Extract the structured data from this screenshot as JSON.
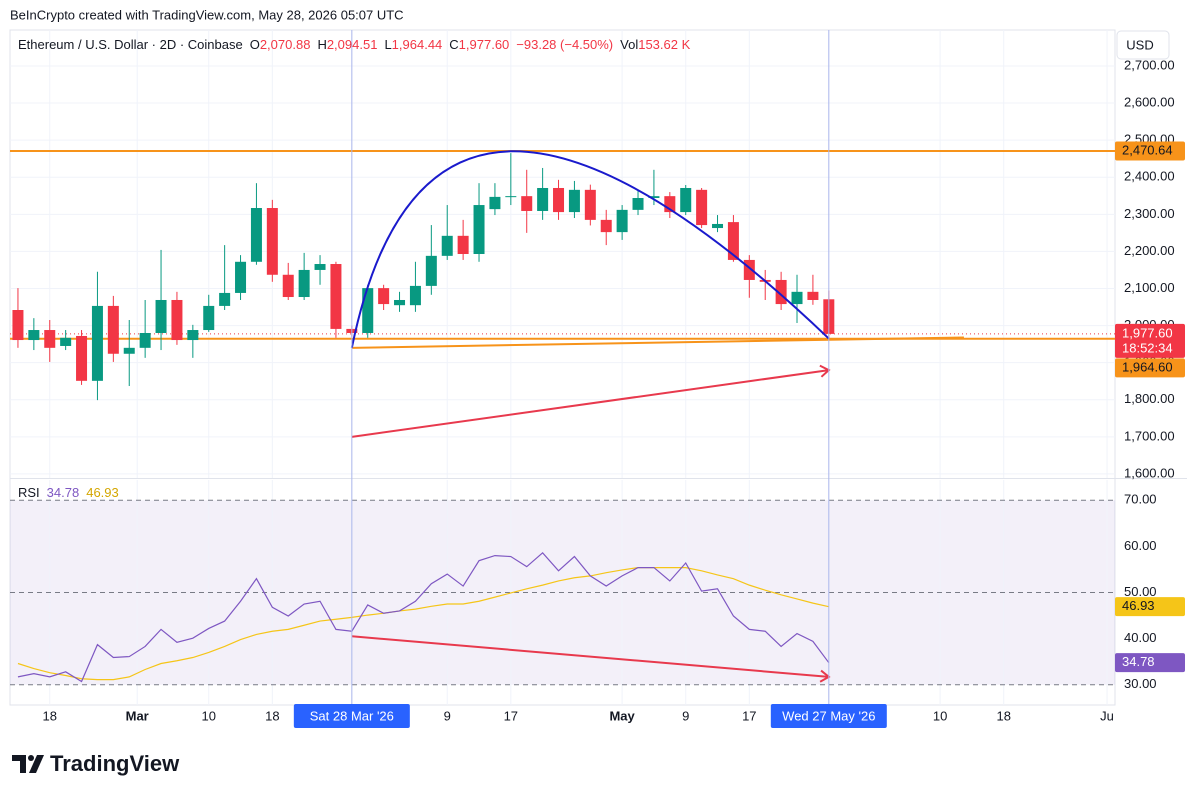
{
  "header": {
    "credit": "BeInCrypto created with TradingView.com, May 28, 2026 05:07 UTC"
  },
  "footer": {
    "brand": "TradingView"
  },
  "chart_data": [
    {
      "type": "candlestick",
      "title": "Ethereum / U.S. Dollar · 2D · Coinbase",
      "currency": "USD",
      "legend": {
        "items": [
          {
            "key": "O",
            "label": "2,070.88"
          },
          {
            "key": "H",
            "label": "2,094.51"
          },
          {
            "key": "L",
            "label": "1,964.44"
          },
          {
            "key": "C",
            "label": "1,977.60"
          }
        ],
        "change": "−93.28 (−4.50%)",
        "volume": {
          "key": "Vol",
          "label": "153.62 K"
        }
      },
      "up_color": "#089981",
      "down_color": "#f23645",
      "x": [
        "2026-02-14",
        "2026-02-16",
        "2026-02-18",
        "2026-02-20",
        "2026-02-22",
        "2026-02-24",
        "2026-02-26",
        "2026-02-28",
        "2026-03-02",
        "2026-03-04",
        "2026-03-06",
        "2026-03-08",
        "2026-03-10",
        "2026-03-12",
        "2026-03-14",
        "2026-03-16",
        "2026-03-18",
        "2026-03-20",
        "2026-03-22",
        "2026-03-24",
        "2026-03-26",
        "2026-03-28",
        "2026-03-30",
        "2026-04-01",
        "2026-04-03",
        "2026-04-05",
        "2026-04-07",
        "2026-04-09",
        "2026-04-11",
        "2026-04-13",
        "2026-04-15",
        "2026-04-17",
        "2026-04-19",
        "2026-04-21",
        "2026-04-23",
        "2026-04-25",
        "2026-04-27",
        "2026-04-29",
        "2026-05-01",
        "2026-05-03",
        "2026-05-05",
        "2026-05-07",
        "2026-05-09",
        "2026-05-11",
        "2026-05-13",
        "2026-05-15",
        "2026-05-17",
        "2026-05-19",
        "2026-05-21",
        "2026-05-23",
        "2026-05-25",
        "2026-05-27"
      ],
      "open": [
        2042,
        1961,
        1988,
        1945,
        1972,
        1851,
        2053,
        1924,
        1940,
        1980,
        2069,
        1961,
        1988,
        2053,
        2088,
        2172,
        2317,
        2137,
        2077,
        2150,
        2166,
        1991,
        1980,
        2101,
        2055,
        2055,
        2107,
        2188,
        2242,
        2193,
        2314,
        2347,
        2349,
        2309,
        2371,
        2306,
        2366,
        2285,
        2252,
        2312,
        2344,
        2349,
        2306,
        2366,
        2263,
        2279,
        2177,
        2123,
        2123,
        2058,
        2091,
        2070.88
      ],
      "high": [
        2101,
        2020,
        2015,
        1988,
        1988,
        2145,
        2080,
        2015,
        2069,
        2204,
        2091,
        2002,
        2083,
        2217,
        2190,
        2384,
        2339,
        2169,
        2196,
        2190,
        2172,
        2000,
        2110,
        2110,
        2091,
        2172,
        2271,
        2325,
        2285,
        2384,
        2384,
        2465,
        2420,
        2425,
        2393,
        2390,
        2380,
        2312,
        2325,
        2366,
        2420,
        2360,
        2379,
        2371,
        2298,
        2298,
        2190,
        2150,
        2145,
        2137,
        2137,
        2094.51
      ],
      "low": [
        1940,
        1934,
        1902,
        1934,
        1840,
        1799,
        1902,
        1837,
        1913,
        1934,
        1948,
        1913,
        1983,
        2042,
        2069,
        2164,
        2118,
        2069,
        2069,
        2110,
        1967,
        1970,
        1967,
        2042,
        2037,
        2037,
        2083,
        2177,
        2177,
        2172,
        2298,
        2325,
        2250,
        2285,
        2285,
        2290,
        2270,
        2217,
        2231,
        2298,
        2325,
        2290,
        2298,
        2263,
        2252,
        2172,
        2075,
        2069,
        2042,
        2007,
        2056,
        1964.44
      ],
      "close": [
        1961,
        1988,
        1940,
        1967,
        1851,
        2053,
        1924,
        1940,
        1980,
        2069,
        1961,
        1988,
        2053,
        2088,
        2172,
        2317,
        2137,
        2077,
        2150,
        2166,
        1991,
        1980,
        2101,
        2058,
        2069,
        2107,
        2188,
        2242,
        2193,
        2325,
        2347,
        2349,
        2309,
        2371,
        2306,
        2366,
        2285,
        2252,
        2312,
        2344,
        2349,
        2306,
        2371,
        2271,
        2274,
        2177,
        2123,
        2118,
        2058,
        2091,
        2069,
        1977.6
      ],
      "close_label": "1,977.60",
      "countdown": "18:52:34",
      "xlim": [
        "2026-02-13",
        "2026-07-02"
      ],
      "ylim": [
        1589,
        2797
      ],
      "yticks": [
        {
          "value": 1600,
          "label": "1,600.00"
        },
        {
          "value": 1700,
          "label": "1,700.00"
        },
        {
          "value": 1800,
          "label": "1,800.00"
        },
        {
          "value": 1900,
          "label": "1,900.00"
        },
        {
          "value": 2000,
          "label": "2,000.00"
        },
        {
          "value": 2100,
          "label": "2,100.00"
        },
        {
          "value": 2200,
          "label": "2,200.00"
        },
        {
          "value": 2300,
          "label": "2,300.00"
        },
        {
          "value": 2400,
          "label": "2,400.00"
        },
        {
          "value": 2500,
          "label": "2,500.00"
        },
        {
          "value": 2600,
          "label": "2,600.00"
        },
        {
          "value": 2700,
          "label": "2,700.00"
        }
      ],
      "xticks": [
        {
          "value": "2026-02-18",
          "label": "18"
        },
        {
          "value": "2026-03-01",
          "label": "Mar"
        },
        {
          "value": "2026-03-10",
          "label": "10"
        },
        {
          "value": "2026-03-18",
          "label": "18"
        },
        {
          "value": "2026-04-09",
          "label": "9"
        },
        {
          "value": "2026-04-17",
          "label": "17"
        },
        {
          "value": "2026-05-01",
          "label": "May"
        },
        {
          "value": "2026-05-09",
          "label": "9"
        },
        {
          "value": "2026-05-17",
          "label": "17"
        },
        {
          "value": "2026-06-10",
          "label": "10"
        },
        {
          "value": "2026-06-18",
          "label": "18"
        },
        {
          "value": "2026-07-01",
          "label": "Ju"
        }
      ],
      "crosshair": [
        {
          "value": "2026-03-28",
          "label": "Sat 28 Mar '26"
        },
        {
          "value": "2026-05-27",
          "label": "Wed 27 May '26"
        }
      ],
      "hlines": [
        {
          "value": 2470.64,
          "label": "2,470.64",
          "color": "#f7931a"
        },
        {
          "value": 1964.6,
          "label": "1,964.60",
          "color": "#f7931a"
        }
      ],
      "drawings": [
        {
          "kind": "line",
          "color": "#f7931a",
          "x": [
            "2026-03-28",
            "2026-06-13"
          ],
          "y": [
            1940,
            1968
          ]
        },
        {
          "kind": "arc",
          "color": "#1a1acc",
          "x": [
            "2026-03-28",
            "2026-04-17",
            "2026-05-27"
          ],
          "y": [
            1940,
            2470,
            1965
          ]
        },
        {
          "kind": "arrow",
          "color": "#e8394d",
          "x": [
            "2026-03-28",
            "2026-05-27"
          ],
          "y": [
            1700,
            1880
          ]
        }
      ]
    },
    {
      "type": "line",
      "title": "RSI",
      "x": [
        "2026-02-14",
        "2026-02-16",
        "2026-02-18",
        "2026-02-20",
        "2026-02-22",
        "2026-02-24",
        "2026-02-26",
        "2026-02-28",
        "2026-03-02",
        "2026-03-04",
        "2026-03-06",
        "2026-03-08",
        "2026-03-10",
        "2026-03-12",
        "2026-03-14",
        "2026-03-16",
        "2026-03-18",
        "2026-03-20",
        "2026-03-22",
        "2026-03-24",
        "2026-03-26",
        "2026-03-28",
        "2026-03-30",
        "2026-04-01",
        "2026-04-03",
        "2026-04-05",
        "2026-04-07",
        "2026-04-09",
        "2026-04-11",
        "2026-04-13",
        "2026-04-15",
        "2026-04-17",
        "2026-04-19",
        "2026-04-21",
        "2026-04-23",
        "2026-04-25",
        "2026-04-27",
        "2026-04-29",
        "2026-05-01",
        "2026-05-03",
        "2026-05-05",
        "2026-05-07",
        "2026-05-09",
        "2026-05-11",
        "2026-05-13",
        "2026-05-15",
        "2026-05-17",
        "2026-05-19",
        "2026-05-21",
        "2026-05-23",
        "2026-05-25",
        "2026-05-27"
      ],
      "series": [
        {
          "color": "#7e57c2",
          "label": "34.78",
          "values": [
            31.7,
            32.4,
            31.7,
            32.8,
            30.7,
            38.7,
            35.9,
            36.1,
            38.3,
            42.0,
            39.2,
            40.1,
            42.2,
            43.8,
            48.1,
            53.0,
            46.8,
            44.9,
            47.5,
            48.1,
            42.0,
            41.6,
            47.3,
            45.5,
            46.0,
            48.1,
            51.9,
            54.0,
            51.4,
            56.9,
            58.0,
            57.8,
            55.6,
            58.6,
            54.7,
            57.8,
            53.6,
            51.4,
            53.6,
            55.4,
            55.4,
            52.5,
            56.4,
            50.3,
            50.8,
            44.9,
            42.0,
            41.6,
            38.3,
            41.1,
            39.4,
            34.78
          ]
        },
        {
          "color": "#f5c518",
          "label": "46.93",
          "values": [
            34.6,
            33.5,
            32.6,
            32.0,
            31.3,
            31.1,
            31.1,
            31.7,
            33.3,
            34.6,
            35.2,
            35.9,
            37.0,
            38.3,
            39.8,
            40.9,
            41.6,
            42.0,
            42.9,
            43.8,
            44.2,
            44.6,
            45.1,
            45.5,
            46.0,
            46.4,
            47.0,
            47.5,
            47.5,
            48.1,
            49.0,
            49.9,
            50.8,
            51.6,
            52.5,
            53.2,
            53.6,
            54.3,
            54.9,
            55.4,
            55.4,
            55.4,
            55.4,
            54.7,
            53.8,
            53.0,
            51.6,
            50.5,
            49.5,
            48.6,
            47.7,
            46.93
          ]
        }
      ],
      "band": [
        30,
        70
      ],
      "xlim": [
        "2026-02-13",
        "2026-07-02"
      ],
      "ylim": [
        25.6,
        74.4
      ],
      "yticks": [
        {
          "value": 30,
          "label": "30.00"
        },
        {
          "value": 40,
          "label": "40.00"
        },
        {
          "value": 50,
          "label": "50.00"
        },
        {
          "value": 60,
          "label": "60.00"
        },
        {
          "value": 70,
          "label": "70.00"
        }
      ],
      "dashed": [
        30,
        50,
        70
      ],
      "drawings": [
        {
          "kind": "arrow",
          "color": "#e8394d",
          "x": [
            "2026-03-28",
            "2026-05-27"
          ],
          "y": [
            40.5,
            31.7
          ]
        }
      ]
    }
  ]
}
